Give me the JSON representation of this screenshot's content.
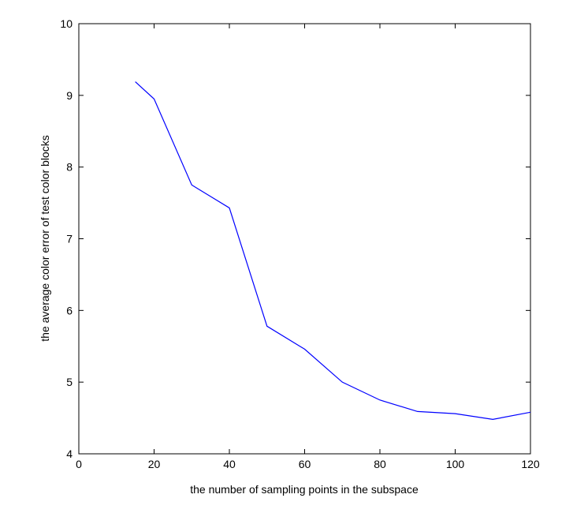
{
  "chart_data": {
    "type": "line",
    "xlabel": "the number of sampling points in the subspace",
    "ylabel": "the average color error of test color blocks",
    "x": [
      15,
      20,
      30,
      40,
      50,
      60,
      70,
      80,
      90,
      100,
      110,
      120
    ],
    "series": [
      {
        "color": "#0000ff",
        "values": [
          9.19,
          8.95,
          7.75,
          7.43,
          5.78,
          5.46,
          5.0,
          4.75,
          4.59,
          4.56,
          4.48,
          4.58
        ]
      }
    ],
    "xlim": [
      0,
      120
    ],
    "xticks": [
      0,
      20,
      40,
      60,
      80,
      100,
      120
    ],
    "ylim": [
      4,
      10
    ],
    "yticks": [
      4,
      5,
      6,
      7,
      8,
      9,
      10
    ]
  }
}
